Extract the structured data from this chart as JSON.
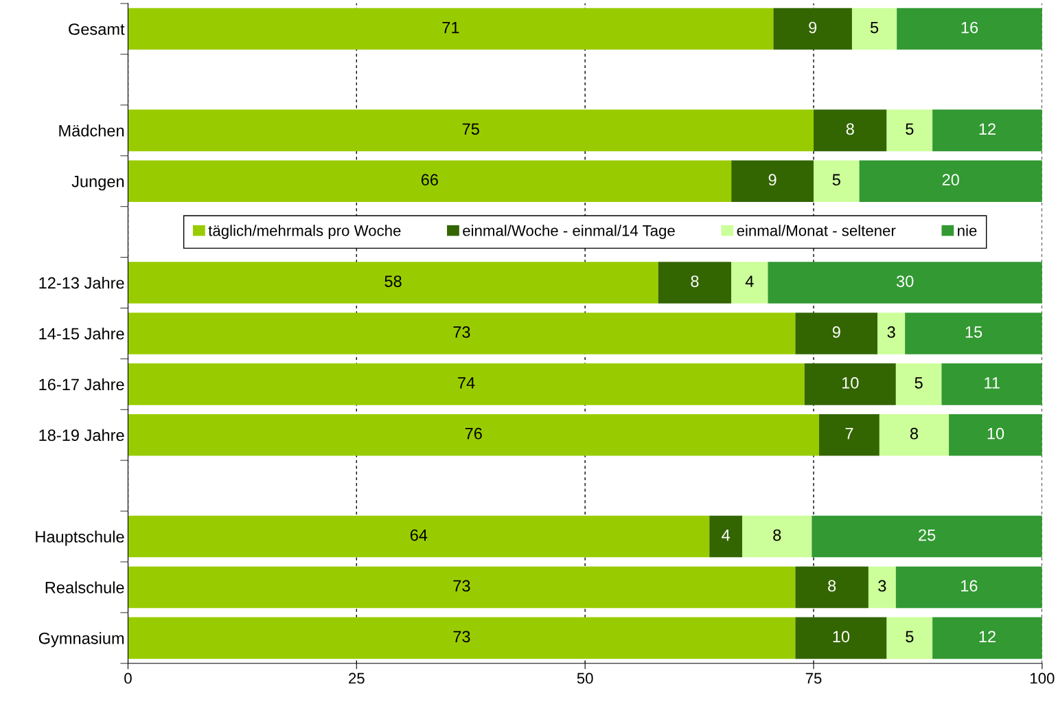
{
  "chart_data": {
    "type": "bar",
    "orientation": "horizontal",
    "stacked": true,
    "categories": [
      "Gesamt",
      null,
      "Mädchen",
      "Jungen",
      null,
      "12-13 Jahre",
      "14-15 Jahre",
      "16-17 Jahre",
      "18-19 Jahre",
      null,
      "Hauptschule",
      "Realschule",
      "Gymnasium"
    ],
    "series": [
      {
        "name": "täglich/mehrmals pro Woche",
        "color": "#99cc00",
        "values": [
          70.6,
          null,
          75,
          66,
          null,
          58,
          73,
          74,
          75.6,
          null,
          63.6,
          73,
          73
        ],
        "value_labels": [
          "71",
          null,
          "75",
          "66",
          null,
          "58",
          "73",
          "74",
          "76",
          null,
          "64",
          "73",
          "73"
        ]
      },
      {
        "name": "einmal/Woche - einmal/14 Tage",
        "color": "#336600",
        "values": [
          8.6,
          null,
          8,
          9,
          null,
          8,
          9,
          10,
          6.6,
          null,
          3.6,
          8,
          10
        ],
        "value_labels": [
          "9",
          null,
          "8",
          "9",
          null,
          "8",
          "9",
          "10",
          "7",
          null,
          "4",
          "8",
          "10"
        ]
      },
      {
        "name": "einmal/Monat - seltener",
        "color": "#ccff99",
        "values": [
          4.9,
          null,
          5,
          5,
          null,
          4,
          3,
          5,
          7.6,
          null,
          7.6,
          3,
          5
        ],
        "value_labels": [
          "5",
          null,
          "5",
          "5",
          null,
          "4",
          "3",
          "5",
          "8",
          null,
          "8",
          "3",
          "5"
        ]
      },
      {
        "name": "nie",
        "color": "#339933",
        "values": [
          15.9,
          null,
          12,
          20,
          null,
          30,
          15,
          11,
          10.2,
          null,
          25.2,
          16,
          12
        ],
        "value_labels": [
          "16",
          null,
          "12",
          "20",
          null,
          "30",
          "15",
          "11",
          "10",
          null,
          "25",
          "16",
          "12"
        ]
      }
    ],
    "xlim": [
      0,
      100
    ],
    "xticks": [
      0,
      25,
      50,
      75,
      100
    ],
    "grid": "x",
    "legend": "center"
  }
}
